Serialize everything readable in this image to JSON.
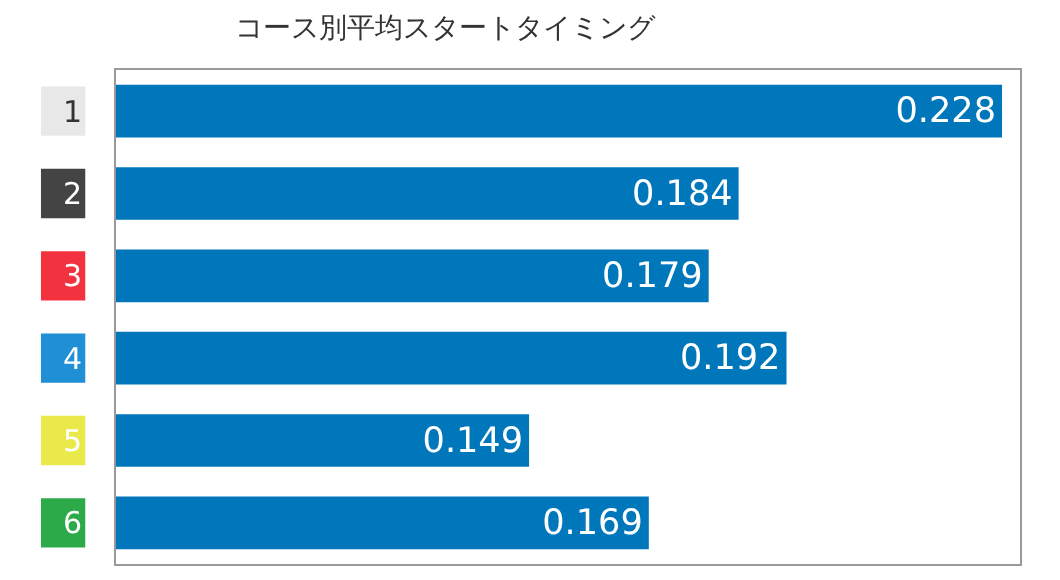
{
  "chart_data": {
    "type": "bar",
    "orientation": "horizontal",
    "title": "コース別平均スタートタイミング",
    "categories": [
      "1",
      "2",
      "3",
      "4",
      "5",
      "6"
    ],
    "values": [
      0.228,
      0.184,
      0.179,
      0.192,
      0.149,
      0.169
    ],
    "color": "#0077bb",
    "xlim": [
      0.08,
      0.231
    ],
    "data_labels": true
  }
}
